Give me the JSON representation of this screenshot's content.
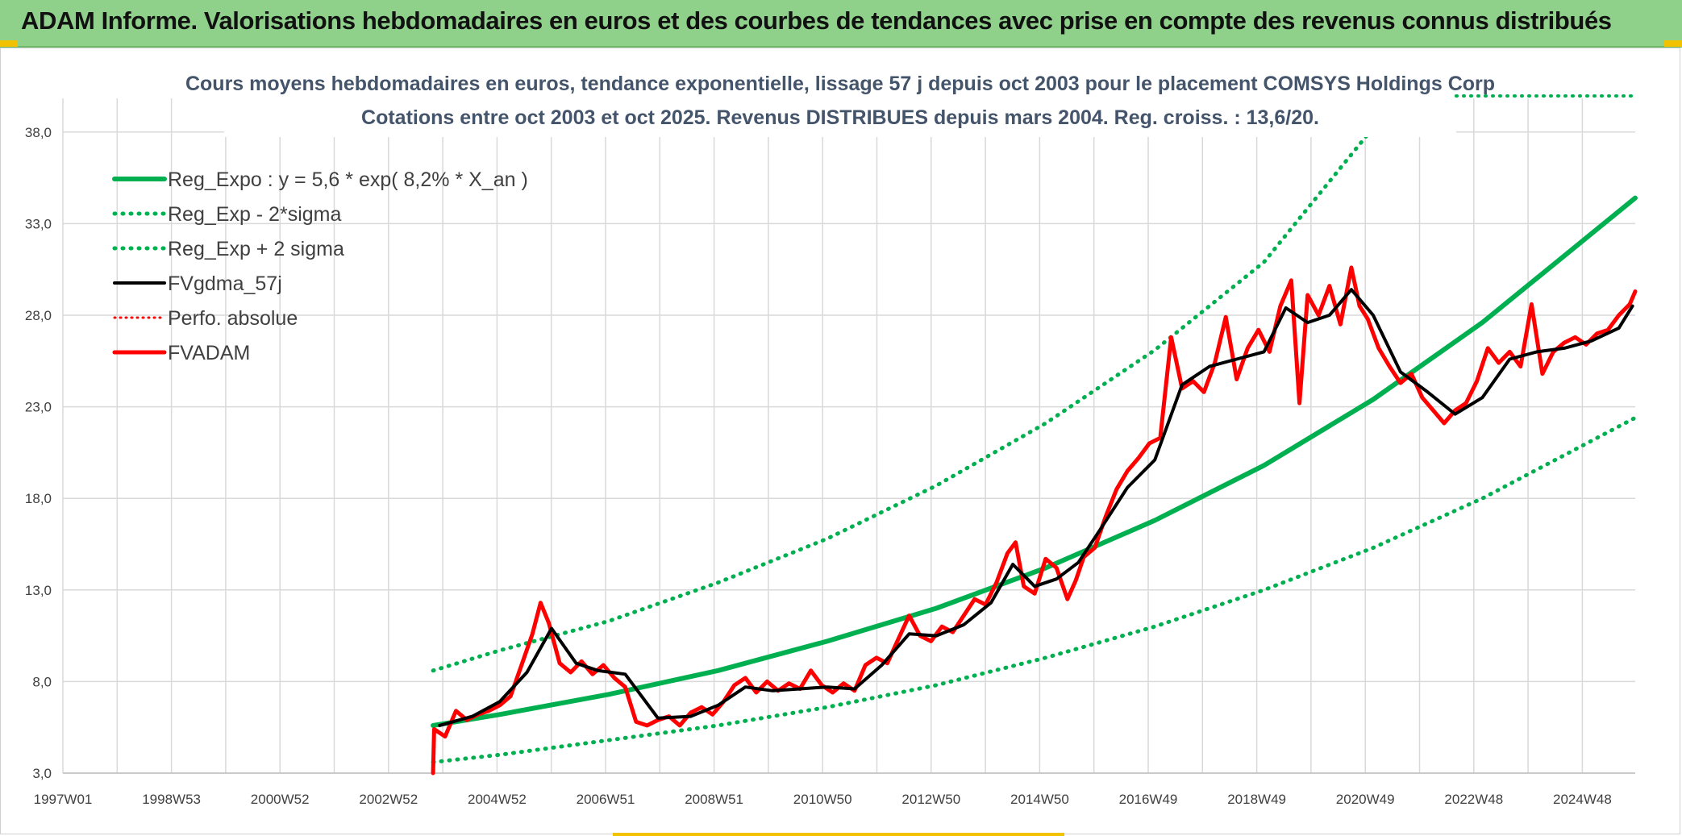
{
  "header": {
    "title": "ADAM Informe. Valorisations hebdomadaires en euros et des courbes de tendances avec prise en compte des revenus connus distribués"
  },
  "chart_data": {
    "type": "line",
    "title": "Cours moyens hebdomadaires en euros, tendance exponentielle, lissage 57 j depuis oct 2003 pour le placement COMSYS Holdings Corp",
    "subtitle": "Cotations entre oct 2003 et oct 2025. Revenus DISTRIBUES depuis mars 2004. Reg. croiss. : 13,6/20.",
    "xlabel": "",
    "ylabel": "",
    "ylim": [
      3,
      40
    ],
    "y_ticks": [
      "3,0",
      "8,0",
      "13,0",
      "18,0",
      "23,0",
      "28,0",
      "33,0",
      "38,0"
    ],
    "x_range": [
      1997.0,
      2025.8
    ],
    "x_ticks": [
      "1997W01",
      "1998W53",
      "2000W52",
      "2002W52",
      "2004W52",
      "2006W51",
      "2008W51",
      "2010W50",
      "2012W50",
      "2014W50",
      "2016W49",
      "2018W49",
      "2020W49",
      "2022W48",
      "2024W48"
    ],
    "grid": true,
    "legend_position": "top-left",
    "colors": {
      "trend": "#00b050",
      "smooth": "#000000",
      "price": "#ff0000",
      "grid": "#d9d9d9"
    },
    "series": [
      {
        "name": "Reg_Expo : y = 5,6 * exp( 8,2% *  X_an )",
        "style": "solid-thick-green",
        "x": [
          2003.78,
          2005,
          2007,
          2009,
          2011,
          2013,
          2015,
          2017,
          2019,
          2021,
          2023,
          2025.8
        ],
        "values": [
          5.6,
          6.2,
          7.3,
          8.6,
          10.2,
          12.0,
          14.2,
          16.8,
          19.8,
          23.4,
          27.6,
          34.4
        ]
      },
      {
        "name": "Reg_Exp - 2*sigma",
        "style": "dotted-green",
        "x": [
          2003.78,
          2005,
          2007,
          2009,
          2011,
          2013,
          2015,
          2017,
          2019,
          2021,
          2023,
          2025.8
        ],
        "values": [
          3.6,
          4.0,
          4.8,
          5.6,
          6.6,
          7.8,
          9.3,
          11.0,
          13.0,
          15.3,
          18.0,
          22.4
        ]
      },
      {
        "name": "Reg_Exp + 2 sigma",
        "style": "dotted-green",
        "x": [
          2003.78,
          2005,
          2007,
          2009,
          2011,
          2013,
          2015,
          2017,
          2019,
          2020.88
        ],
        "values": [
          8.6,
          9.7,
          11.3,
          13.4,
          15.8,
          18.7,
          22.1,
          26.1,
          30.9,
          37.8
        ]
      },
      {
        "name": "FVgdma_57j",
        "style": "solid-black",
        "x": [
          2003.9,
          2004.5,
          2005.0,
          2005.5,
          2005.95,
          2006.4,
          2006.8,
          2007.3,
          2007.9,
          2008.5,
          2009.0,
          2009.5,
          2010.0,
          2010.5,
          2011.0,
          2011.5,
          2012.0,
          2012.5,
          2013.0,
          2013.5,
          2014.0,
          2014.4,
          2014.8,
          2015.2,
          2015.6,
          2016.0,
          2016.5,
          2017.0,
          2017.5,
          2018.0,
          2018.5,
          2019.0,
          2019.4,
          2019.8,
          2020.2,
          2020.6,
          2021.0,
          2021.5,
          2022.0,
          2022.5,
          2023.0,
          2023.5,
          2024.0,
          2024.5,
          2025.0,
          2025.5,
          2025.75
        ],
        "values": [
          5.6,
          6.1,
          6.9,
          8.5,
          10.9,
          9.0,
          8.6,
          8.4,
          6.0,
          6.1,
          6.7,
          7.7,
          7.5,
          7.6,
          7.7,
          7.6,
          8.9,
          10.6,
          10.5,
          11.1,
          12.3,
          14.4,
          13.2,
          13.6,
          14.5,
          16.3,
          18.6,
          20.1,
          24.2,
          25.2,
          25.6,
          26.0,
          28.4,
          27.6,
          28.0,
          29.4,
          28.0,
          24.9,
          23.8,
          22.6,
          23.5,
          25.6,
          26.0,
          26.2,
          26.6,
          27.3,
          28.5
        ]
      },
      {
        "name": "Perfo. absolue",
        "style": "dotted-red",
        "x": [],
        "values": []
      },
      {
        "name": "FVADAM",
        "style": "solid-thick-red",
        "x": [
          2003.78,
          2003.8,
          2004.0,
          2004.2,
          2004.4,
          2004.6,
          2004.8,
          2005.0,
          2005.2,
          2005.4,
          2005.6,
          2005.75,
          2005.9,
          2006.1,
          2006.3,
          2006.5,
          2006.7,
          2006.9,
          2007.1,
          2007.3,
          2007.5,
          2007.7,
          2007.9,
          2008.1,
          2008.3,
          2008.5,
          2008.7,
          2008.9,
          2009.1,
          2009.3,
          2009.5,
          2009.7,
          2009.9,
          2010.1,
          2010.3,
          2010.5,
          2010.7,
          2010.9,
          2011.1,
          2011.3,
          2011.5,
          2011.7,
          2011.9,
          2012.1,
          2012.3,
          2012.5,
          2012.7,
          2012.9,
          2013.1,
          2013.3,
          2013.5,
          2013.7,
          2013.9,
          2014.1,
          2014.3,
          2014.45,
          2014.6,
          2014.8,
          2015.0,
          2015.2,
          2015.4,
          2015.55,
          2015.7,
          2015.9,
          2016.1,
          2016.3,
          2016.5,
          2016.7,
          2016.9,
          2017.1,
          2017.3,
          2017.5,
          2017.7,
          2017.9,
          2018.1,
          2018.3,
          2018.5,
          2018.7,
          2018.9,
          2019.1,
          2019.3,
          2019.5,
          2019.65,
          2019.8,
          2020.0,
          2020.2,
          2020.4,
          2020.6,
          2020.75,
          2020.9,
          2021.1,
          2021.3,
          2021.5,
          2021.7,
          2021.9,
          2022.1,
          2022.3,
          2022.5,
          2022.7,
          2022.9,
          2023.1,
          2023.3,
          2023.5,
          2023.7,
          2023.9,
          2024.1,
          2024.3,
          2024.5,
          2024.7,
          2024.9,
          2025.1,
          2025.3,
          2025.5,
          2025.7,
          2025.8
        ],
        "values": [
          3.0,
          5.4,
          5.0,
          6.4,
          5.9,
          6.2,
          6.4,
          6.7,
          7.2,
          8.9,
          10.6,
          12.3,
          11.2,
          9.0,
          8.5,
          9.1,
          8.4,
          8.9,
          8.2,
          7.7,
          5.8,
          5.6,
          5.9,
          6.1,
          5.6,
          6.3,
          6.6,
          6.2,
          6.9,
          7.8,
          8.2,
          7.4,
          8.0,
          7.5,
          7.9,
          7.6,
          8.6,
          7.8,
          7.4,
          7.9,
          7.5,
          8.9,
          9.3,
          9.0,
          10.3,
          11.6,
          10.5,
          10.2,
          11.0,
          10.7,
          11.6,
          12.5,
          12.2,
          13.4,
          15.0,
          15.6,
          13.2,
          12.8,
          14.7,
          14.2,
          12.5,
          13.5,
          14.8,
          15.3,
          17.0,
          18.5,
          19.5,
          20.2,
          21.0,
          21.3,
          26.8,
          24.0,
          24.4,
          23.8,
          25.4,
          27.9,
          24.5,
          26.2,
          27.2,
          26.0,
          28.5,
          29.9,
          23.2,
          29.1,
          28.0,
          29.6,
          27.5,
          30.6,
          28.5,
          27.8,
          26.2,
          25.2,
          24.3,
          24.8,
          23.5,
          22.8,
          22.1,
          22.8,
          23.2,
          24.4,
          26.2,
          25.4,
          26.0,
          25.2,
          28.6,
          24.8,
          26.0,
          26.5,
          26.8,
          26.4,
          27.0,
          27.2,
          28.0,
          28.6,
          29.3
        ]
      }
    ]
  }
}
